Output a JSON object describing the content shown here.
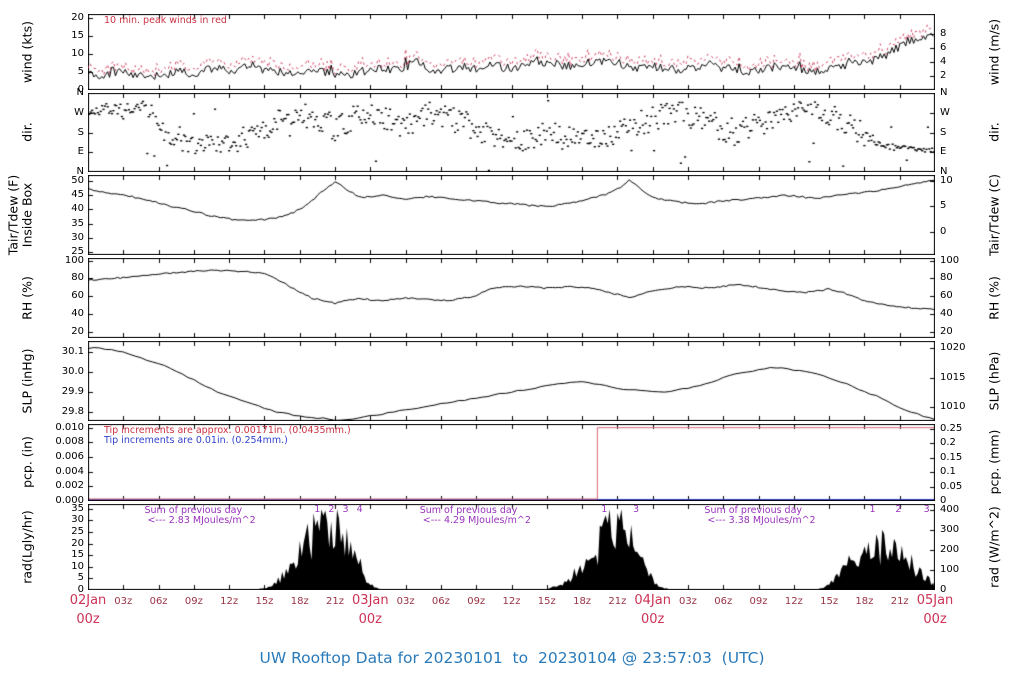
{
  "title": "UW Rooftop Data for 20230101  to  20230104 @ 23:57:03  (UTC)",
  "x_axis": {
    "hours_total": 72,
    "minor_every_hours": 3,
    "minor_labels": [
      "03z",
      "06z",
      "09z",
      "12z",
      "15z",
      "18z",
      "21z"
    ],
    "major": [
      {
        "hour": 0,
        "label": "02Jan",
        "sub": "00z"
      },
      {
        "hour": 24,
        "label": "03Jan",
        "sub": "00z"
      },
      {
        "hour": 48,
        "label": "04Jan",
        "sub": "00z"
      },
      {
        "hour": 72,
        "label": "05Jan",
        "sub": "00z"
      }
    ]
  },
  "colors": {
    "trace": "#000000",
    "peak_red": "#cc3355",
    "annotation_red": "#cc3344",
    "annotation_blue": "#3344cc",
    "annotation_purple": "#9933bb",
    "day_label": "#cc3355",
    "hour_label": "#993344",
    "title": "#2a7ab9",
    "pcp_step": "#dd6677",
    "pcp_blue": "#3344cc"
  },
  "chart_data": [
    {
      "id": "wind",
      "type": "line",
      "ylabel_left": "wind (kts)",
      "ylabel_right": "wind (m/s)",
      "annotation": "10 min. peak winds in red",
      "ylim": [
        0,
        21
      ],
      "yticks_left": [
        {
          "v": 0,
          "label": "0"
        },
        {
          "v": 5,
          "label": "5"
        },
        {
          "v": 10,
          "label": "10"
        },
        {
          "v": 15,
          "label": "15"
        },
        {
          "v": 20,
          "label": "20"
        }
      ],
      "yticks_right": [
        {
          "v": 3.889,
          "label": "2"
        },
        {
          "v": 7.778,
          "label": "4"
        },
        {
          "v": 11.667,
          "label": "6"
        },
        {
          "v": 15.556,
          "label": "8"
        }
      ],
      "values": [
        5,
        4.2,
        4.6,
        5,
        4.2,
        3.6,
        4,
        4.5,
        5,
        4.6,
        5.4,
        6,
        5.2,
        6.4,
        6.8,
        5.6,
        5,
        4.6,
        5,
        5.5,
        5,
        4.6,
        4.2,
        5,
        5.5,
        6,
        5.6,
        6.2,
        8.5,
        6,
        5.4,
        6,
        6.4,
        6,
        6.8,
        6.4,
        6,
        6.8,
        8.2,
        7.4,
        7,
        6.6,
        7,
        7.4,
        7.8,
        7,
        6.4,
        6,
        6.4,
        6,
        5.6,
        6,
        6.4,
        7,
        6,
        5.6,
        5.2,
        5.6,
        6,
        6.4,
        6,
        5.6,
        5.2,
        6,
        6.4,
        7,
        7.6,
        8.4,
        10,
        12,
        13.5,
        14.5,
        15.5
      ],
      "render": {
        "seed": 101,
        "step_hours": 0.1667,
        "noise": 1.2,
        "peak_extra": [
          0.8,
          2.0
        ]
      }
    },
    {
      "id": "dir",
      "type": "scatter",
      "ylabel_left": "dir.",
      "ylabel_right": "dir.",
      "ylim": [
        0,
        360
      ],
      "yticks_left": [
        {
          "v": 0,
          "label": "N"
        },
        {
          "v": 90,
          "label": "E"
        },
        {
          "v": 180,
          "label": "S"
        },
        {
          "v": 270,
          "label": "W"
        },
        {
          "v": 360,
          "label": "N"
        }
      ],
      "yticks_right": [
        {
          "v": 0,
          "label": "N"
        },
        {
          "v": 90,
          "label": "E"
        },
        {
          "v": 180,
          "label": "S"
        },
        {
          "v": 270,
          "label": "W"
        },
        {
          "v": 360,
          "label": "N"
        }
      ],
      "base": [
        280,
        285,
        290,
        275,
        280,
        285,
        230,
        160,
        130,
        120,
        140,
        130,
        120,
        150,
        170,
        200,
        230,
        250,
        260,
        240,
        220,
        200,
        230,
        260,
        270,
        250,
        230,
        210,
        250,
        270,
        260,
        240,
        220,
        200,
        180,
        160,
        150,
        140,
        160,
        180,
        170,
        160,
        150,
        140,
        160,
        180,
        200,
        220,
        240,
        260,
        280,
        260,
        240,
        220,
        200,
        180,
        200,
        220,
        240,
        260,
        280,
        300,
        280,
        260,
        240,
        200,
        160,
        130,
        115,
        110,
        105,
        100,
        100
      ],
      "spread": [
        30,
        30,
        30,
        35,
        35,
        40,
        60,
        50,
        40,
        40,
        45,
        45,
        45,
        50,
        55,
        55,
        50,
        45,
        45,
        50,
        55,
        60,
        55,
        50,
        45,
        50,
        55,
        60,
        55,
        50,
        50,
        55,
        60,
        60,
        55,
        50,
        45,
        45,
        50,
        55,
        55,
        50,
        45,
        45,
        50,
        55,
        60,
        60,
        55,
        55,
        50,
        55,
        60,
        60,
        60,
        60,
        60,
        60,
        55,
        50,
        45,
        40,
        45,
        50,
        55,
        50,
        40,
        25,
        15,
        12,
        10,
        9,
        9
      ],
      "render": {
        "seed": 202,
        "step_hours": 0.12,
        "outlier_prob": 0.06
      }
    },
    {
      "id": "temp",
      "type": "line",
      "ylabel_left": "Tair/Tdew (F)",
      "ylabel_left_2": "Inside Box",
      "ylabel_right": "Tair/Tdew (C)",
      "ylim": [
        24,
        52
      ],
      "yticks_left": [
        {
          "v": 25,
          "label": "25"
        },
        {
          "v": 30,
          "label": "30"
        },
        {
          "v": 35,
          "label": "35"
        },
        {
          "v": 40,
          "label": "40"
        },
        {
          "v": 45,
          "label": "45"
        },
        {
          "v": 50,
          "label": "50"
        }
      ],
      "yticks_right": [
        {
          "v": 32,
          "label": "0"
        },
        {
          "v": 41,
          "label": "5"
        },
        {
          "v": 50,
          "label": "10"
        }
      ],
      "values": [
        47,
        46.2,
        45.6,
        45,
        44.2,
        43.2,
        42.2,
        41.2,
        40.2,
        39.2,
        38.2,
        37.2,
        36.6,
        36.2,
        36,
        36.4,
        37,
        38,
        40,
        43,
        46.5,
        49.5,
        47,
        44.2,
        44.5,
        45,
        44.2,
        43.6,
        44,
        44.5,
        44,
        43.5,
        43.2,
        43,
        42.6,
        42.2,
        42,
        41.6,
        41.2,
        41,
        41.5,
        42,
        43,
        44,
        45.2,
        47,
        50.2,
        47,
        44.2,
        43.2,
        42.6,
        42.2,
        42,
        42.4,
        43,
        43.2,
        43.6,
        44,
        44.4,
        45,
        44.6,
        44.2,
        44,
        44.4,
        45,
        45.4,
        46,
        46.5,
        47,
        48,
        49,
        49.5,
        50
      ],
      "render": {
        "seed": 303,
        "step_hours": 0.25,
        "noise": 0.3
      }
    },
    {
      "id": "rh",
      "type": "line",
      "ylabel_left": "RH (%)",
      "ylabel_right": "RH (%)",
      "ylim": [
        13,
        103
      ],
      "yticks_left": [
        {
          "v": 20,
          "label": "20"
        },
        {
          "v": 40,
          "label": "40"
        },
        {
          "v": 60,
          "label": "60"
        },
        {
          "v": 80,
          "label": "80"
        },
        {
          "v": 100,
          "label": "100"
        }
      ],
      "yticks_right": [
        {
          "v": 20,
          "label": "20"
        },
        {
          "v": 40,
          "label": "40"
        },
        {
          "v": 60,
          "label": "60"
        },
        {
          "v": 80,
          "label": "80"
        },
        {
          "v": 100,
          "label": "100"
        }
      ],
      "values": [
        78,
        79,
        80,
        81,
        82,
        83.5,
        85,
        86,
        87,
        88,
        88.5,
        89,
        88.5,
        88,
        87,
        85,
        80,
        72,
        65,
        58,
        55,
        52,
        55,
        58,
        56,
        55,
        57,
        58,
        57,
        56,
        55,
        56,
        58,
        60,
        68,
        70,
        70.5,
        71,
        70,
        69,
        70,
        71,
        70,
        68,
        65,
        62,
        58,
        62,
        66,
        68,
        70,
        70.5,
        69,
        70,
        71,
        73,
        72,
        70,
        68,
        66,
        65,
        64,
        66,
        68,
        65,
        60,
        55,
        52,
        50,
        48,
        47,
        46,
        45
      ],
      "render": {
        "seed": 404,
        "step_hours": 0.25,
        "noise": 0.8
      }
    },
    {
      "id": "slp",
      "type": "line",
      "ylabel_left": "SLP (inHg)",
      "ylabel_right": "SLP (hPa)",
      "ylim": [
        29.755,
        30.155
      ],
      "yticks_left": [
        {
          "v": 29.8,
          "label": "29.8"
        },
        {
          "v": 29.9,
          "label": "29.9"
        },
        {
          "v": 30.0,
          "label": "30.0"
        },
        {
          "v": 30.1,
          "label": "30.1"
        }
      ],
      "yticks_right": [
        {
          "v": 29.825,
          "label": "1010"
        },
        {
          "v": 29.972,
          "label": "1015"
        },
        {
          "v": 30.12,
          "label": "1020"
        }
      ],
      "values": [
        30.12,
        30.12,
        30.11,
        30.1,
        30.08,
        30.06,
        30.04,
        30.02,
        29.99,
        29.96,
        29.93,
        29.9,
        29.88,
        29.86,
        29.84,
        29.82,
        29.8,
        29.79,
        29.78,
        29.77,
        29.77,
        29.76,
        29.76,
        29.77,
        29.78,
        29.79,
        29.8,
        29.81,
        29.82,
        29.83,
        29.84,
        29.85,
        29.86,
        29.87,
        29.88,
        29.89,
        29.9,
        29.91,
        29.92,
        29.93,
        29.94,
        29.95,
        29.95,
        29.94,
        29.93,
        29.92,
        29.91,
        29.91,
        29.9,
        29.9,
        29.91,
        29.92,
        29.93,
        29.95,
        29.97,
        29.99,
        30.0,
        30.01,
        30.02,
        30.02,
        30.01,
        30.0,
        29.99,
        29.97,
        29.95,
        29.93,
        29.9,
        29.88,
        29.85,
        29.82,
        29.8,
        29.78,
        29.76
      ],
      "render": {
        "seed": 505,
        "step_hours": 0.5,
        "noise": 0.003
      }
    },
    {
      "id": "pcp",
      "type": "step",
      "ylabel_left": "pcp. (in)",
      "ylabel_right": "pcp. (mm)",
      "annotation_red": "Tip increments are approx. 0.00171in. (0.0435mm.)",
      "annotation_blue": "Tip increments are 0.01in. (0.254mm.)",
      "ylim": [
        0,
        0.0105
      ],
      "yticks_left": [
        {
          "v": 0,
          "label": "0.000"
        },
        {
          "v": 0.002,
          "label": "0.002"
        },
        {
          "v": 0.004,
          "label": "0.004"
        },
        {
          "v": 0.006,
          "label": "0.006"
        },
        {
          "v": 0.008,
          "label": "0.008"
        },
        {
          "v": 0.01,
          "label": "0.010"
        }
      ],
      "yticks_right": [
        {
          "v": 0,
          "label": "0"
        },
        {
          "v": 0.001969,
          "label": "0.05"
        },
        {
          "v": 0.003937,
          "label": "0.1"
        },
        {
          "v": 0.005906,
          "label": "0.15"
        },
        {
          "v": 0.007874,
          "label": "0.2"
        },
        {
          "v": 0.009843,
          "label": "0.25"
        }
      ],
      "step": {
        "hour": 43.3,
        "level": 0.01
      }
    },
    {
      "id": "rad",
      "type": "area",
      "ylabel_left": "rad(Lgly/hr)",
      "ylabel_right": "rad (W/m^2)",
      "ylim": [
        0,
        37
      ],
      "yticks_left": [
        {
          "v": 0,
          "label": "0"
        },
        {
          "v": 5,
          "label": "5"
        },
        {
          "v": 10,
          "label": "10"
        },
        {
          "v": 15,
          "label": "15"
        },
        {
          "v": 20,
          "label": "20"
        },
        {
          "v": 25,
          "label": "25"
        },
        {
          "v": 30,
          "label": "30"
        },
        {
          "v": 35,
          "label": "35"
        }
      ],
      "yticks_right": [
        {
          "v": 0,
          "label": "0"
        },
        {
          "v": 8.6,
          "label": "100"
        },
        {
          "v": 17.2,
          "label": "200"
        },
        {
          "v": 25.8,
          "label": "300"
        },
        {
          "v": 34.4,
          "label": "400"
        }
      ],
      "values": [
        0,
        0,
        0,
        0,
        0,
        0,
        0,
        0,
        0,
        0,
        0,
        0,
        0,
        0,
        0,
        0.5,
        3,
        9,
        17,
        25,
        30,
        31,
        24,
        12,
        2,
        0,
        0,
        0,
        0,
        0,
        0,
        0,
        0,
        0,
        0,
        0,
        0,
        0,
        0,
        0,
        2,
        6,
        10,
        15,
        28,
        33,
        26,
        13,
        4,
        0.5,
        0,
        0,
        0,
        0,
        0,
        0,
        0,
        0,
        0,
        0,
        0,
        0,
        0,
        2,
        7,
        13,
        18,
        20,
        19,
        16,
        13,
        7,
        2
      ],
      "sums": [
        {
          "hour": 4.8,
          "line1": "Sum of previous day",
          "line2": "<--- 2.83 MJoules/m^2"
        },
        {
          "hour": 28.2,
          "line1": "Sum of previous day",
          "line2": "<--- 4.29 MJoules/m^2"
        },
        {
          "hour": 52.4,
          "line1": "Sum of previous day",
          "line2": "<--- 3.38 MJoules/m^2"
        }
      ],
      "markers": [
        {
          "hour": 19.4,
          "label": "1"
        },
        {
          "hour": 20.6,
          "label": "2"
        },
        {
          "hour": 21.8,
          "label": "3"
        },
        {
          "hour": 23.0,
          "label": "4"
        },
        {
          "hour": 43.8,
          "label": "1"
        },
        {
          "hour": 46.5,
          "label": "3"
        },
        {
          "hour": 66.6,
          "label": "1"
        },
        {
          "hour": 68.8,
          "label": "2"
        },
        {
          "hour": 71.2,
          "label": "3"
        }
      ],
      "render": {
        "seed": 606,
        "step_hours": 0.1667
      }
    }
  ]
}
